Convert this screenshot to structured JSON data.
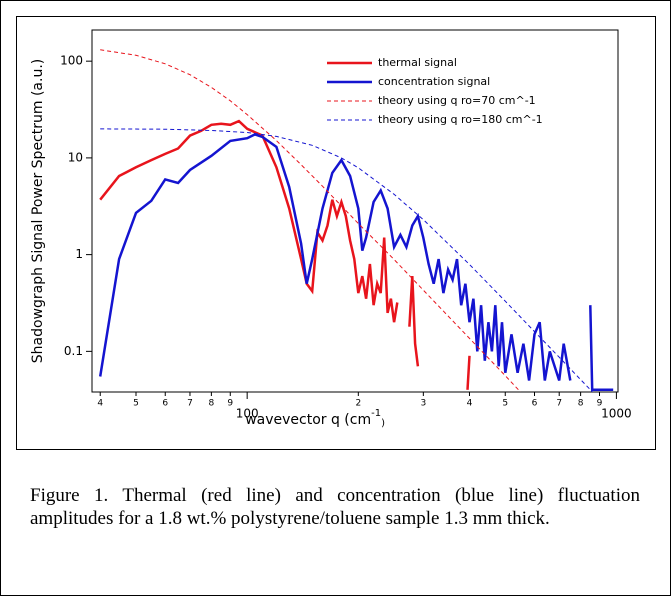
{
  "chart_data": {
    "type": "line",
    "ylabel": "Shadowgraph Signal Power Spectrum (a.u.)",
    "xlabel": {
      "text": "wavevector q (cm",
      "superscript": "-1",
      "close": ")"
    },
    "xscale": "log",
    "yscale": "log",
    "xlim": [
      38,
      1010
    ],
    "ylim": [
      0.038,
      210
    ],
    "xticks": [
      {
        "value": 40,
        "label": "4"
      },
      {
        "value": 50,
        "label": "5"
      },
      {
        "value": 60,
        "label": "6"
      },
      {
        "value": 70,
        "label": "7"
      },
      {
        "value": 80,
        "label": "8"
      },
      {
        "value": 90,
        "label": "9"
      },
      100,
      {
        "value": 200,
        "label": "2"
      },
      {
        "value": 300,
        "label": "3"
      },
      {
        "value": 400,
        "label": "4"
      },
      {
        "value": 500,
        "label": "5"
      },
      {
        "value": 600,
        "label": "6"
      },
      {
        "value": 700,
        "label": "7"
      },
      {
        "value": 800,
        "label": "8"
      },
      {
        "value": 900,
        "label": "9"
      },
      1000
    ],
    "yticks": [
      0.1,
      1,
      10,
      100
    ],
    "series": [
      {
        "name": "thermal signal",
        "color": "#e8141c",
        "dash": false,
        "x": [
          40,
          45,
          50,
          55,
          60,
          65,
          70,
          75,
          80,
          85,
          90,
          95,
          100,
          110,
          120,
          130,
          140,
          145,
          150,
          155,
          160,
          165,
          170,
          175,
          180,
          185,
          190,
          195,
          200,
          205,
          210,
          215,
          220,
          225,
          230,
          235,
          240,
          245,
          250,
          255,
          265,
          275,
          280,
          285,
          290,
          295,
          395,
          400
        ],
        "values": [
          3.7,
          6.5,
          8,
          9.5,
          11,
          12.5,
          17,
          19,
          22,
          22.5,
          22,
          24,
          20,
          17,
          8,
          3,
          0.9,
          0.5,
          0.42,
          1.7,
          1.4,
          2,
          3.7,
          2.5,
          3.5,
          2.5,
          1.4,
          0.9,
          0.4,
          0.6,
          0.35,
          0.8,
          0.3,
          0.5,
          0.4,
          1.5,
          0.25,
          0.35,
          0.2,
          0.32,
          null,
          0.18,
          0.6,
          0.12,
          0.07,
          null,
          0.04,
          0.09
        ]
      },
      {
        "name": "concentration signal",
        "color": "#1414d0",
        "dash": false,
        "x": [
          40,
          45,
          50,
          55,
          60,
          65,
          70,
          80,
          90,
          100,
          105,
          110,
          120,
          130,
          140,
          145,
          150,
          160,
          170,
          180,
          190,
          200,
          205,
          210,
          220,
          230,
          240,
          250,
          260,
          270,
          280,
          290,
          300,
          310,
          320,
          330,
          340,
          350,
          360,
          370,
          380,
          390,
          400,
          410,
          420,
          430,
          440,
          450,
          460,
          470,
          480,
          490,
          500,
          520,
          540,
          560,
          580,
          600,
          620,
          640,
          660,
          700,
          720,
          750,
          830,
          850,
          860,
          980
        ],
        "values": [
          0.055,
          0.9,
          2.7,
          3.6,
          6,
          5.5,
          7.5,
          10.5,
          15,
          16,
          17.5,
          16.5,
          13,
          5,
          1.3,
          0.5,
          0.9,
          3,
          7,
          9.5,
          6.5,
          3,
          1.1,
          1.5,
          3.5,
          4.6,
          3,
          1.2,
          1.6,
          1.2,
          2,
          2.5,
          1.5,
          0.8,
          0.5,
          0.9,
          0.4,
          0.7,
          0.55,
          0.9,
          0.3,
          0.5,
          0.2,
          0.35,
          0.1,
          0.3,
          0.08,
          0.2,
          0.1,
          0.3,
          0.07,
          0.2,
          0.06,
          0.15,
          0.06,
          0.12,
          0.05,
          0.15,
          0.2,
          0.05,
          0.1,
          0.05,
          0.12,
          0.05,
          null,
          0.3,
          0.04,
          0.04
        ]
      },
      {
        "name": "theory using q ro=70 cm^-1",
        "color": "#e8141c",
        "dash": true,
        "x": [
          40,
          50,
          60,
          70,
          80,
          90,
          100,
          120,
          140,
          160,
          200,
          250,
          300,
          400,
          500,
          550
        ],
        "values": [
          131,
          115,
          94,
          72.5,
          53.6,
          38.9,
          28,
          15.1,
          8.5,
          5.1,
          2.1,
          0.89,
          0.43,
          0.136,
          0.056,
          0.038
        ]
      },
      {
        "name": "theory using q ro=180 cm^-1",
        "color": "#1414d0",
        "dash": true,
        "x": [
          40,
          60,
          80,
          100,
          120,
          150,
          180,
          200,
          250,
          300,
          400,
          500,
          600,
          700,
          800,
          900
        ],
        "values": [
          19.95,
          19.8,
          19.2,
          18.3,
          16.7,
          13.5,
          10,
          7.9,
          4.2,
          2.3,
          0.79,
          0.33,
          0.16,
          0.087,
          0.051,
          0.032
        ]
      }
    ]
  },
  "caption": "Figure 1.  Thermal (red line) and concentration (blue line) fluctuation amplitudes for a 1.8 wt.% polystyrene/toluene sample 1.3 mm thick."
}
